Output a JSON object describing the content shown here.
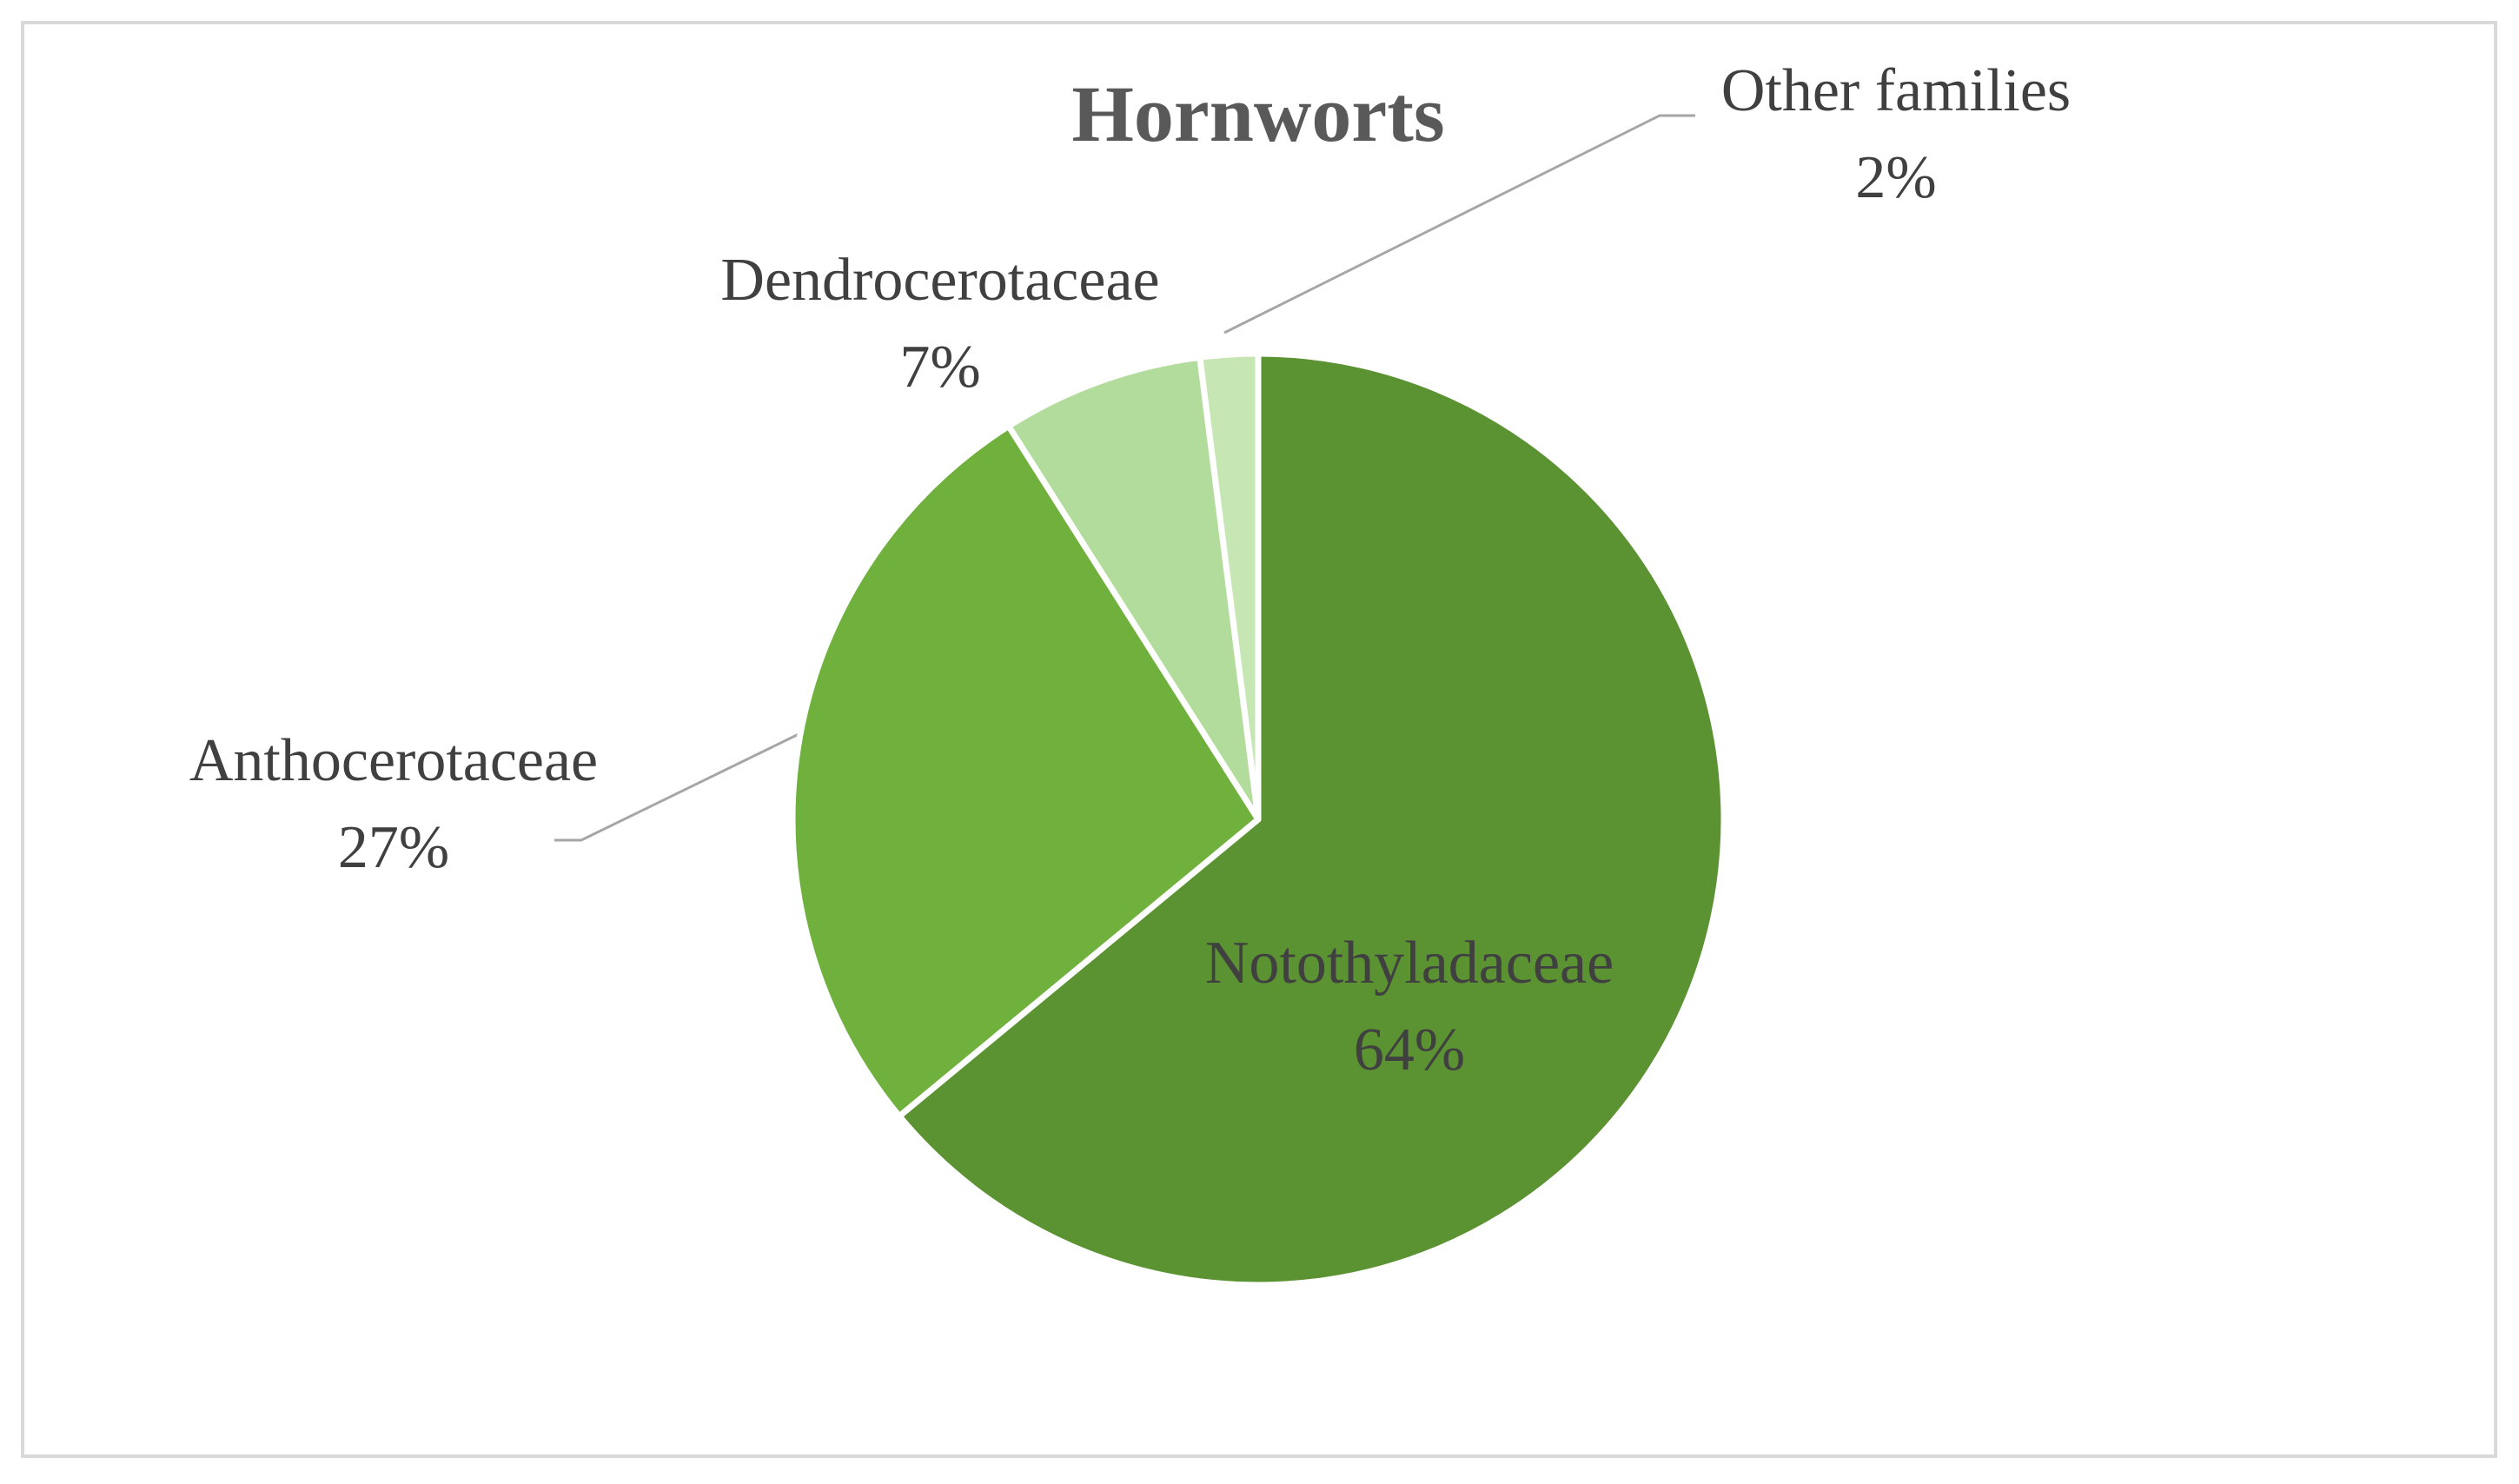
{
  "chart_data": {
    "type": "pie",
    "title": "Hornworts",
    "categories": [
      "Notothyladaceae",
      "Anthocerotaceae",
      "Dendrocerotaceae",
      "Other families"
    ],
    "values": [
      64,
      27,
      7,
      2
    ],
    "value_labels": [
      "64%",
      "27%",
      "7%",
      "2%"
    ],
    "colors": [
      "#5b9232",
      "#70b13e",
      "#b1dc9b",
      "#c6e6b3"
    ]
  }
}
